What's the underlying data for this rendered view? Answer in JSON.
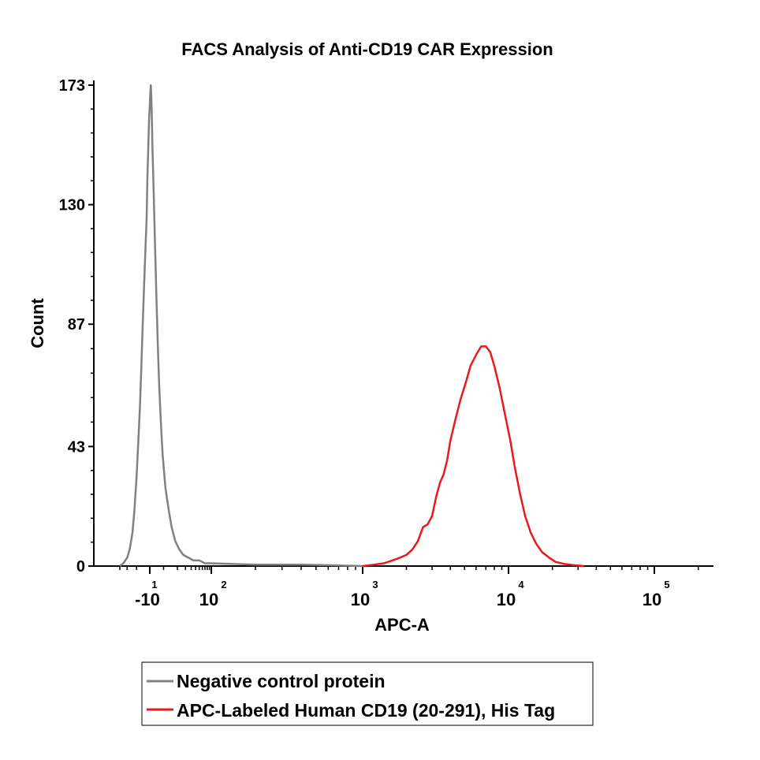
{
  "chart_data": {
    "type": "line",
    "title": "FACS Analysis of Anti-CD19 CAR Expression",
    "xlabel": "APC-A",
    "ylabel": "Count",
    "x_scale": "biexponential",
    "ylim": [
      0,
      173
    ],
    "y_ticks": [
      {
        "value": 0,
        "label": "0"
      },
      {
        "value": 43,
        "label": "43"
      },
      {
        "value": 87,
        "label": "87"
      },
      {
        "value": 130,
        "label": "130"
      },
      {
        "value": 173,
        "label": "173"
      }
    ],
    "x_ticks": [
      {
        "value": -10,
        "base": "-10",
        "exp": "1"
      },
      {
        "value": 100,
        "base": "10",
        "exp": "2"
      },
      {
        "value": 1000,
        "base": "10",
        "exp": "3"
      },
      {
        "value": 10000,
        "base": "10",
        "exp": "4"
      },
      {
        "value": 100000,
        "base": "10",
        "exp": "5"
      }
    ],
    "legend_position": "bottom",
    "series": [
      {
        "name": "Negative control protein",
        "color": "#808080",
        "points": [
          [
            -40,
            0
          ],
          [
            -35,
            1
          ],
          [
            -30,
            3
          ],
          [
            -27,
            6
          ],
          [
            -24,
            12
          ],
          [
            -22,
            20
          ],
          [
            -20,
            32
          ],
          [
            -18,
            48
          ],
          [
            -17,
            58
          ],
          [
            -16,
            70
          ],
          [
            -15,
            84
          ],
          [
            -14,
            98
          ],
          [
            -13,
            112
          ],
          [
            -12,
            125
          ],
          [
            -11.5,
            140
          ],
          [
            -11,
            150
          ],
          [
            -10.5,
            160
          ],
          [
            -10,
            166
          ],
          [
            -9.5,
            170
          ],
          [
            -9,
            173
          ],
          [
            -8.5,
            168
          ],
          [
            -8,
            160
          ],
          [
            -7.5,
            150
          ],
          [
            -6.5,
            135
          ],
          [
            -5.5,
            118
          ],
          [
            -4.5,
            100
          ],
          [
            -3.5,
            82
          ],
          [
            -2.5,
            65
          ],
          [
            -1.5,
            52
          ],
          [
            -0.5,
            40
          ],
          [
            1,
            28
          ],
          [
            3,
            20
          ],
          [
            5,
            14
          ],
          [
            8,
            9
          ],
          [
            12,
            6
          ],
          [
            17,
            4
          ],
          [
            25,
            3
          ],
          [
            35,
            2
          ],
          [
            50,
            2
          ],
          [
            70,
            1
          ],
          [
            100,
            1
          ],
          [
            200,
            0.5
          ],
          [
            400,
            0.5
          ],
          [
            600,
            0.3
          ],
          [
            1000,
            0
          ]
        ]
      },
      {
        "name": "APC-Labeled Human CD19 (20-291), His Tag",
        "color": "#e8191e",
        "points": [
          [
            1000,
            0
          ],
          [
            1200,
            0.5
          ],
          [
            1400,
            1
          ],
          [
            1600,
            2
          ],
          [
            1800,
            3
          ],
          [
            2000,
            4
          ],
          [
            2200,
            6
          ],
          [
            2400,
            9
          ],
          [
            2600,
            14
          ],
          [
            2800,
            15
          ],
          [
            3000,
            18
          ],
          [
            3200,
            25
          ],
          [
            3400,
            30
          ],
          [
            3600,
            33
          ],
          [
            3800,
            38
          ],
          [
            4000,
            45
          ],
          [
            4300,
            52
          ],
          [
            4700,
            60
          ],
          [
            5100,
            66
          ],
          [
            5500,
            72
          ],
          [
            6000,
            76
          ],
          [
            6500,
            79
          ],
          [
            7000,
            79
          ],
          [
            7500,
            77
          ],
          [
            8000,
            72
          ],
          [
            8700,
            64
          ],
          [
            9500,
            54
          ],
          [
            10300,
            45
          ],
          [
            11000,
            36
          ],
          [
            12000,
            26
          ],
          [
            13000,
            18
          ],
          [
            14200,
            12
          ],
          [
            15500,
            8
          ],
          [
            17000,
            5
          ],
          [
            19000,
            3
          ],
          [
            21000,
            1.5
          ],
          [
            24000,
            0.8
          ],
          [
            28000,
            0.3
          ],
          [
            33000,
            0
          ]
        ]
      }
    ]
  }
}
